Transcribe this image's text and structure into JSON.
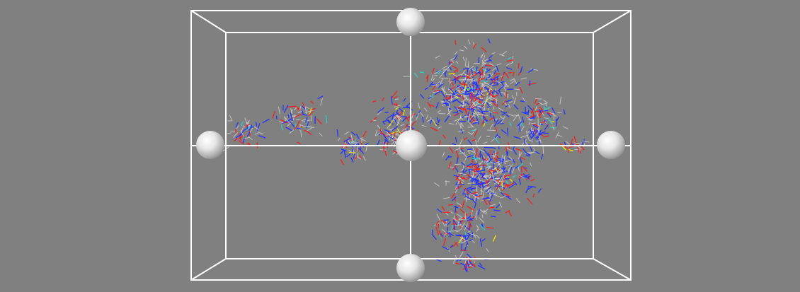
{
  "viewer": {
    "background_color": "#808080",
    "box_color": "#ffffff",
    "handle_color": "#f2f2f2",
    "handles": [
      "top",
      "bottom",
      "left",
      "right",
      "center"
    ]
  },
  "molecule": {
    "representation": "wireframe",
    "element_colors": {
      "carbon": "#c8c8c8",
      "nitrogen": "#2233ff",
      "oxygen": "#ee2222",
      "sulfur": "#e8e800",
      "hydrogen": "#33cccc"
    }
  }
}
